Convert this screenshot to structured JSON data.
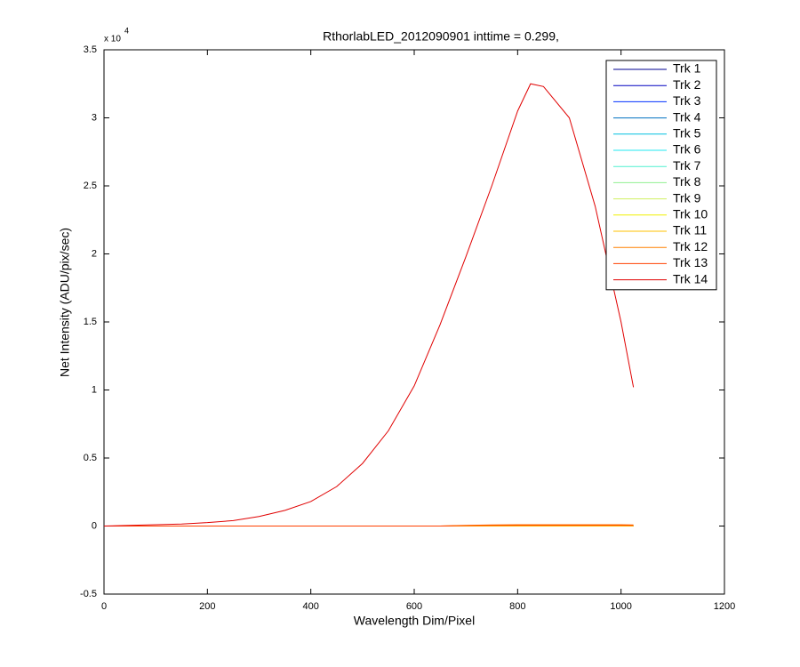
{
  "chart_data": {
    "type": "line",
    "title": "RthorlabLED_2012090901 inttime = 0.299,",
    "x_label": "Wavelength Dim/Pixel",
    "y_label": "Net Intensity (ADU/pix/sec)",
    "y_multiplier": "x 10",
    "y_exponent": "4",
    "x": [
      0,
      50,
      100,
      150,
      200,
      250,
      300,
      350,
      400,
      450,
      500,
      550,
      600,
      650,
      700,
      750,
      800,
      825,
      850,
      900,
      950,
      1000,
      1024
    ],
    "series": [
      {
        "name": "Trk 1",
        "color": "#000090",
        "values": [
          0,
          0,
          0,
          0,
          0,
          0,
          0,
          0,
          0,
          0,
          0,
          0,
          0,
          0,
          0,
          0,
          0,
          0,
          0,
          0,
          0,
          0,
          0
        ]
      },
      {
        "name": "Trk 2",
        "color": "#0000c0",
        "values": [
          0,
          0,
          0,
          0,
          0,
          0,
          0,
          0,
          0,
          0,
          0,
          0,
          0,
          0,
          0,
          0,
          0,
          0,
          0,
          0,
          0,
          0,
          0
        ]
      },
      {
        "name": "Trk 3",
        "color": "#0030ff",
        "values": [
          0,
          0,
          0,
          0,
          0,
          0,
          0,
          0,
          0,
          0,
          0,
          0,
          0,
          0,
          0,
          0,
          0,
          0,
          0,
          0,
          0,
          0,
          0
        ]
      },
      {
        "name": "Trk 4",
        "color": "#0070c0",
        "values": [
          0,
          0,
          0,
          0,
          0,
          0,
          0,
          0,
          0,
          0,
          0,
          0,
          0,
          0,
          0,
          0,
          0,
          0,
          0,
          0,
          0,
          0,
          0
        ]
      },
      {
        "name": "Trk 5",
        "color": "#00c0e0",
        "values": [
          0,
          0,
          0,
          0,
          0,
          0,
          0,
          0,
          0,
          0,
          0,
          0,
          0,
          0,
          0,
          0,
          0,
          0,
          0,
          0,
          0,
          0,
          0
        ]
      },
      {
        "name": "Trk 6",
        "color": "#20e8f0",
        "values": [
          0,
          0,
          0,
          0,
          0,
          0,
          0,
          0,
          0,
          0,
          0,
          0,
          0,
          0,
          0,
          0,
          0,
          0,
          0,
          0,
          0,
          0,
          0
        ]
      },
      {
        "name": "Trk 7",
        "color": "#50f0d0",
        "values": [
          0,
          0,
          0,
          0,
          0,
          0,
          0,
          0,
          0,
          0,
          0,
          0,
          0,
          0,
          0,
          0,
          0,
          0,
          0,
          0,
          0,
          0,
          0
        ]
      },
      {
        "name": "Trk 8",
        "color": "#90f090",
        "values": [
          0,
          0,
          0,
          0,
          0,
          0,
          0,
          0,
          0,
          0,
          0,
          0,
          0,
          0,
          0,
          0,
          0,
          0,
          0,
          0,
          0,
          0,
          0
        ]
      },
      {
        "name": "Trk 9",
        "color": "#d0f060",
        "values": [
          0,
          0,
          0,
          0,
          0,
          0,
          0,
          0,
          0,
          0,
          0,
          0,
          0,
          0,
          0,
          0,
          0,
          0,
          0,
          0,
          0,
          0,
          0
        ]
      },
      {
        "name": "Trk 10",
        "color": "#f0f000",
        "values": [
          0,
          0,
          0,
          0,
          0,
          0,
          0,
          0,
          0,
          0,
          0,
          0,
          0,
          0,
          0,
          0,
          0,
          0,
          0,
          0,
          0,
          0,
          0
        ]
      },
      {
        "name": "Trk 11",
        "color": "#ffc000",
        "values": [
          0,
          0,
          0,
          0,
          0,
          0,
          0,
          0,
          0,
          0,
          0,
          0,
          0,
          0,
          0,
          0,
          0,
          0,
          0,
          0,
          0,
          0,
          0
        ]
      },
      {
        "name": "Trk 12",
        "color": "#ff8000",
        "values": [
          0,
          0,
          0,
          0,
          0,
          0,
          0,
          0,
          0,
          0,
          0,
          0,
          0,
          0,
          50,
          80,
          100,
          100,
          100,
          100,
          100,
          100,
          80
        ]
      },
      {
        "name": "Trk 13",
        "color": "#ff4000",
        "values": [
          0,
          0,
          0,
          0,
          0,
          0,
          0,
          0,
          0,
          0,
          0,
          0,
          0,
          0,
          30,
          50,
          60,
          60,
          60,
          60,
          60,
          60,
          50
        ]
      },
      {
        "name": "Trk 14",
        "color": "#e00000",
        "values": [
          0,
          50,
          100,
          150,
          250,
          400,
          700,
          1150,
          1800,
          2900,
          4600,
          7000,
          10300,
          14800,
          19800,
          25000,
          30500,
          32500,
          32300,
          30000,
          23500,
          15000,
          10200
        ]
      }
    ],
    "xlim": [
      0,
      1200
    ],
    "xticks": [
      0,
      200,
      400,
      600,
      800,
      1000,
      1200
    ],
    "ylim": [
      -5000,
      35000
    ],
    "yticks": [
      {
        "value": -5000,
        "label": "-0.5"
      },
      0,
      {
        "value": 5000,
        "label": "0.5"
      },
      {
        "value": 10000,
        "label": "1"
      },
      {
        "value": 15000,
        "label": "1.5"
      },
      {
        "value": 20000,
        "label": "2"
      },
      {
        "value": 25000,
        "label": "2.5"
      },
      {
        "value": 30000,
        "label": "3"
      },
      {
        "value": 35000,
        "label": "3.5"
      }
    ],
    "grid": false,
    "legend": "top-right"
  }
}
